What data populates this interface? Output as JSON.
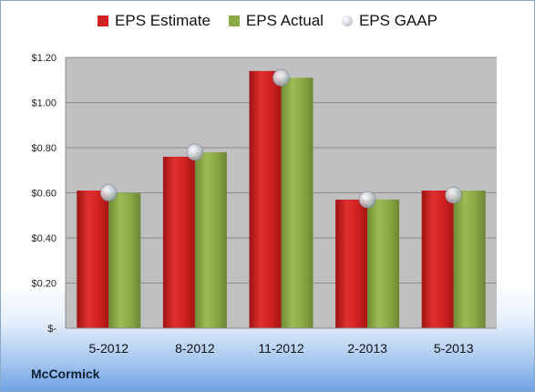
{
  "chart_data": {
    "type": "bar",
    "categories": [
      "5-2012",
      "8-2012",
      "11-2012",
      "2-2013",
      "5-2013"
    ],
    "series": [
      {
        "name": "EPS Estimate",
        "values": [
          0.61,
          0.76,
          1.14,
          0.57,
          0.61
        ],
        "color": "#d42222",
        "kind": "bar"
      },
      {
        "name": "EPS Actual",
        "values": [
          0.6,
          0.78,
          1.11,
          0.57,
          0.61
        ],
        "color": "#8cab46",
        "kind": "bar"
      },
      {
        "name": "EPS GAAP",
        "values": [
          0.6,
          0.78,
          1.11,
          0.57,
          0.59
        ],
        "color": "#b9c2cc",
        "kind": "marker"
      }
    ],
    "ylim": [
      0,
      1.2
    ],
    "yticks": [
      0,
      0.2,
      0.4,
      0.6,
      0.8,
      1.0,
      1.2
    ],
    "ytick_labels": [
      "$-",
      "$0.20",
      "$0.40",
      "$0.60",
      "$0.80",
      "$1.00",
      "$1.20"
    ],
    "legend_position": "top-center",
    "grid": true,
    "plot_background": "#c0c0c0"
  },
  "company": "McCormick"
}
